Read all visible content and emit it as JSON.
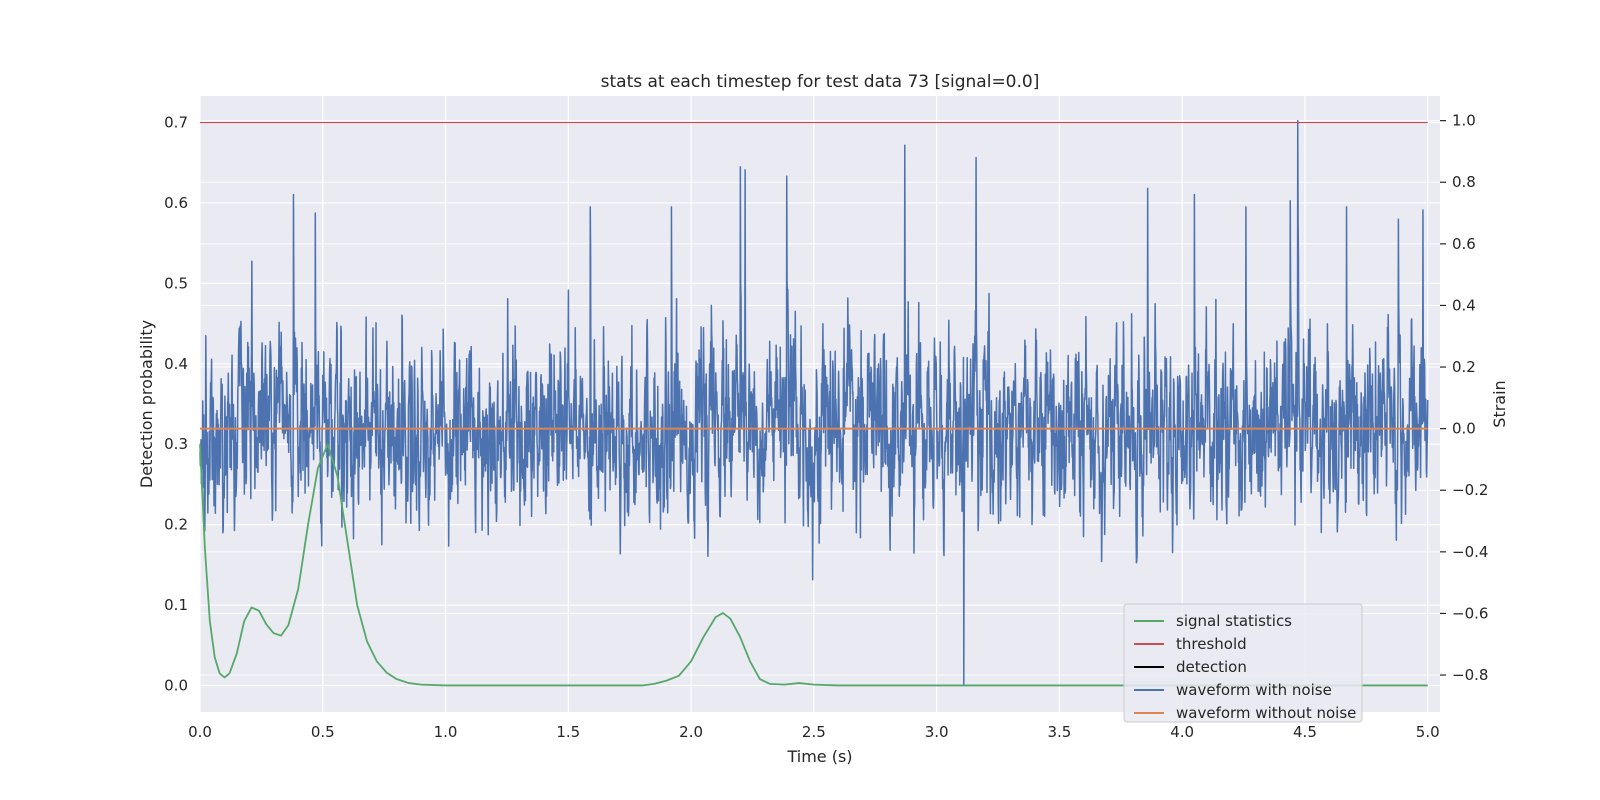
{
  "chart_data": {
    "type": "line",
    "title": "stats at each timestep for test data 73 [signal=0.0]",
    "xlabel": "Time (s)",
    "ylabel_left": "Detection probability",
    "ylabel_right": "Strain",
    "xlim": [
      0.0,
      5.05
    ],
    "ylim_left": [
      -0.033,
      0.733
    ],
    "ylim_right": [
      -0.92,
      1.08
    ],
    "x_ticks": [
      "0.0",
      "0.5",
      "1.0",
      "1.5",
      "2.0",
      "2.5",
      "3.0",
      "3.5",
      "4.0",
      "4.5",
      "5.0"
    ],
    "y_ticks_left": [
      "0.0",
      "0.1",
      "0.2",
      "0.3",
      "0.4",
      "0.5",
      "0.6",
      "0.7"
    ],
    "y_ticks_right": [
      "−0.8",
      "−0.6",
      "−0.4",
      "−0.2",
      "0.0",
      "0.2",
      "0.4",
      "0.6",
      "0.8",
      "1.0"
    ],
    "grid": true,
    "legend_position": "lower-right",
    "threshold": 0.7,
    "series": [
      {
        "name": "signal statistics",
        "axis": "left",
        "color": "#55a868",
        "x": [
          0.0,
          0.02,
          0.04,
          0.06,
          0.08,
          0.1,
          0.12,
          0.15,
          0.18,
          0.21,
          0.24,
          0.27,
          0.3,
          0.33,
          0.36,
          0.4,
          0.44,
          0.48,
          0.52,
          0.56,
          0.6,
          0.64,
          0.68,
          0.72,
          0.76,
          0.8,
          0.85,
          0.9,
          1.0,
          1.2,
          1.5,
          1.8,
          1.85,
          1.9,
          1.95,
          2.0,
          2.05,
          2.1,
          2.13,
          2.16,
          2.2,
          2.24,
          2.28,
          2.32,
          2.38,
          2.44,
          2.5,
          2.6,
          3.0,
          4.0,
          5.0
        ],
        "y": [
          0.3,
          0.17,
          0.08,
          0.035,
          0.015,
          0.01,
          0.015,
          0.04,
          0.08,
          0.097,
          0.093,
          0.076,
          0.065,
          0.062,
          0.075,
          0.12,
          0.2,
          0.27,
          0.3,
          0.26,
          0.18,
          0.1,
          0.055,
          0.03,
          0.016,
          0.008,
          0.003,
          0.001,
          0.0,
          0.0,
          0.0,
          0.0,
          0.002,
          0.006,
          0.012,
          0.03,
          0.06,
          0.085,
          0.09,
          0.083,
          0.06,
          0.03,
          0.008,
          0.002,
          0.001,
          0.003,
          0.001,
          0.0,
          0.0,
          0.0,
          0.0
        ]
      },
      {
        "name": "threshold",
        "axis": "left",
        "color": "#c44e52",
        "x": [
          0.0,
          5.0
        ],
        "y": [
          0.7,
          0.7
        ]
      },
      {
        "name": "detection",
        "axis": "left",
        "color": "#000000",
        "x": [],
        "y": []
      },
      {
        "name": "waveform with noise",
        "axis": "right",
        "color": "#4c72b0",
        "description_stats": {
          "t_start": 0.0,
          "t_end": 5.0,
          "mean": 0.0,
          "std": 0.2,
          "min": -0.83,
          "max": 1.0
        },
        "x": [
          0.38,
          0.47,
          1.59,
          1.92,
          2.2,
          2.22,
          2.39,
          2.87,
          3.11,
          3.16,
          3.86,
          4.05,
          4.26,
          4.44,
          4.47,
          4.67,
          4.88,
          4.98
        ],
        "y": [
          0.76,
          0.7,
          0.72,
          0.72,
          0.85,
          0.84,
          0.82,
          0.92,
          -0.83,
          0.88,
          0.78,
          0.76,
          0.72,
          0.74,
          1.0,
          0.72,
          0.68,
          0.71
        ]
      },
      {
        "name": "waveform without noise",
        "axis": "right",
        "color": "#dd8452",
        "x": [
          0.0,
          5.0
        ],
        "y": [
          0.0,
          0.0
        ]
      }
    ]
  }
}
